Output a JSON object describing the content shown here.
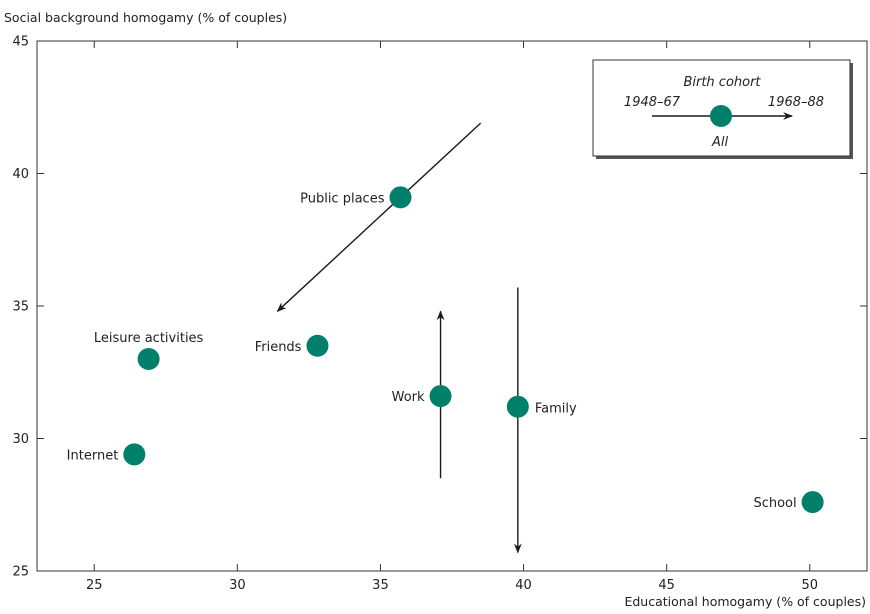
{
  "chart_data": {
    "type": "scatter",
    "xlabel": "Educational homogamy (% of couples)",
    "ylabel": "Social background homogamy (% of couples)",
    "xlim": [
      23,
      52
    ],
    "ylim": [
      25,
      45
    ],
    "xticks": [
      25,
      30,
      35,
      40,
      45,
      50
    ],
    "yticks": [
      25,
      30,
      35,
      40,
      45
    ],
    "grid": false,
    "points": [
      {
        "label": "Public places",
        "x": 35.7,
        "y": 39.1
      },
      {
        "label": "Leisure activities",
        "x": 26.9,
        "y": 33.0
      },
      {
        "label": "Friends",
        "x": 32.8,
        "y": 33.5
      },
      {
        "label": "Work",
        "x": 37.1,
        "y": 31.6
      },
      {
        "label": "Family",
        "x": 39.8,
        "y": 31.2
      },
      {
        "label": "Internet",
        "x": 26.4,
        "y": 29.4
      },
      {
        "label": "School",
        "x": 50.1,
        "y": 27.6
      }
    ],
    "cohort_arrows": [
      {
        "label": "Public places",
        "from": [
          38.5,
          41.9
        ],
        "to": [
          31.4,
          34.8
        ]
      },
      {
        "label": "Work",
        "from": [
          37.1,
          28.5
        ],
        "to": [
          37.1,
          34.8
        ]
      },
      {
        "label": "Family",
        "from": [
          39.8,
          35.7
        ],
        "to": [
          39.8,
          25.7
        ]
      }
    ],
    "legend": {
      "title": "Birth cohort",
      "start_label": "1948–67",
      "end_label": "1968–88",
      "point_label": "All",
      "placement": "top-right"
    },
    "colors": {
      "marker": "#00806a",
      "arrow": "#1a1a1a",
      "axis": "#333333",
      "text": "#222222"
    }
  }
}
